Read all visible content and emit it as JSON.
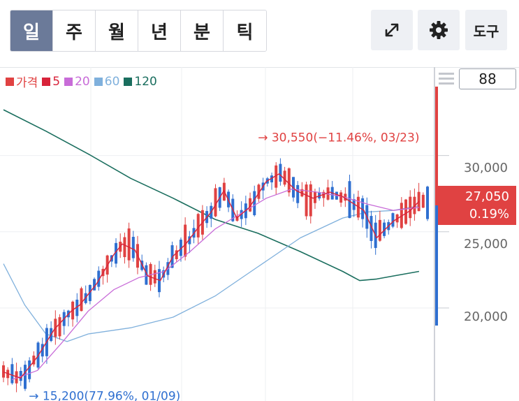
{
  "tabs": [
    {
      "label": "일",
      "active": true
    },
    {
      "label": "주",
      "active": false
    },
    {
      "label": "월",
      "active": false
    },
    {
      "label": "년",
      "active": false
    },
    {
      "label": "분",
      "active": false
    },
    {
      "label": "틱",
      "active": false
    }
  ],
  "toolbar": {
    "expand_icon": "expand-icon",
    "settings_icon": "gear-icon",
    "tools_label": "도구"
  },
  "count_box": "88",
  "colors": {
    "up": "#e04242",
    "down": "#2f6fd0",
    "ma5": "#d8233a",
    "ma20": "#c86cd8",
    "ma60": "#7fb0dc",
    "ma120": "#1a6e5e",
    "active_tab": "#6b7a99"
  },
  "chart_data": {
    "type": "candlestick",
    "title": "",
    "legend": [
      {
        "label": "가격",
        "color": "#e04242"
      },
      {
        "label": "5",
        "color": "#d8233a"
      },
      {
        "label": "20",
        "color": "#c86cd8"
      },
      {
        "label": "60",
        "color": "#7fb0dc"
      },
      {
        "label": "120",
        "color": "#1a6e5e"
      }
    ],
    "legend_position": "top-left",
    "y_axis": {
      "position": "right",
      "ticks": [
        "30,000",
        "25,000",
        "20,000"
      ],
      "tick_values": [
        30000,
        25000,
        20000
      ],
      "range": [
        13900,
        35800
      ]
    },
    "x_range": [
      0,
      100
    ],
    "current_price": {
      "value": 27050,
      "label": "27,050",
      "change": "0.19%"
    },
    "high_annotation": {
      "text": "30,550(−11.46%, 03/23)",
      "value": 30550,
      "index": 60
    },
    "low_annotation": {
      "text": "15,200(77.96%, 01/09)",
      "value": 15200,
      "index": 4
    },
    "ma5": [
      [
        0,
        15800
      ],
      [
        4,
        15400
      ],
      [
        8,
        16800
      ],
      [
        12,
        18600
      ],
      [
        16,
        19800
      ],
      [
        18,
        20200
      ],
      [
        22,
        21600
      ],
      [
        26,
        23500
      ],
      [
        28,
        24200
      ],
      [
        31,
        23800
      ],
      [
        34,
        22100
      ],
      [
        37,
        21800
      ],
      [
        40,
        23400
      ],
      [
        43,
        24200
      ],
      [
        46,
        25300
      ],
      [
        49,
        26300
      ],
      [
        52,
        27700
      ],
      [
        55,
        25900
      ],
      [
        58,
        26600
      ],
      [
        62,
        28300
      ],
      [
        65,
        28800
      ],
      [
        69,
        27700
      ],
      [
        73,
        27200
      ],
      [
        77,
        27600
      ],
      [
        80,
        27300
      ],
      [
        85,
        26400
      ],
      [
        88,
        24600
      ],
      [
        92,
        25700
      ],
      [
        96,
        26400
      ],
      [
        98,
        27000
      ]
    ],
    "ma20": [
      [
        2,
        15300
      ],
      [
        8,
        15900
      ],
      [
        14,
        17800
      ],
      [
        20,
        19800
      ],
      [
        26,
        21200
      ],
      [
        32,
        22000
      ],
      [
        38,
        22400
      ],
      [
        44,
        23700
      ],
      [
        50,
        25200
      ],
      [
        56,
        26200
      ],
      [
        62,
        27200
      ],
      [
        68,
        27800
      ],
      [
        74,
        27600
      ],
      [
        80,
        27300
      ],
      [
        86,
        26800
      ],
      [
        92,
        26400
      ],
      [
        98,
        26600
      ]
    ],
    "ma60": [
      [
        0,
        22900
      ],
      [
        5,
        20200
      ],
      [
        10,
        18300
      ],
      [
        15,
        17800
      ],
      [
        20,
        18300
      ],
      [
        30,
        18700
      ],
      [
        40,
        19400
      ],
      [
        50,
        20800
      ],
      [
        60,
        22700
      ],
      [
        70,
        24600
      ],
      [
        80,
        25900
      ],
      [
        86,
        26300
      ],
      [
        92,
        26400
      ],
      [
        98,
        26700
      ]
    ],
    "ma120": [
      [
        0,
        33000
      ],
      [
        10,
        31600
      ],
      [
        20,
        30100
      ],
      [
        30,
        28500
      ],
      [
        40,
        27200
      ],
      [
        50,
        25800
      ],
      [
        60,
        24900
      ],
      [
        70,
        23700
      ],
      [
        80,
        22400
      ],
      [
        84,
        21800
      ],
      [
        88,
        21900
      ],
      [
        92,
        22100
      ],
      [
        98,
        22400
      ]
    ]
  }
}
